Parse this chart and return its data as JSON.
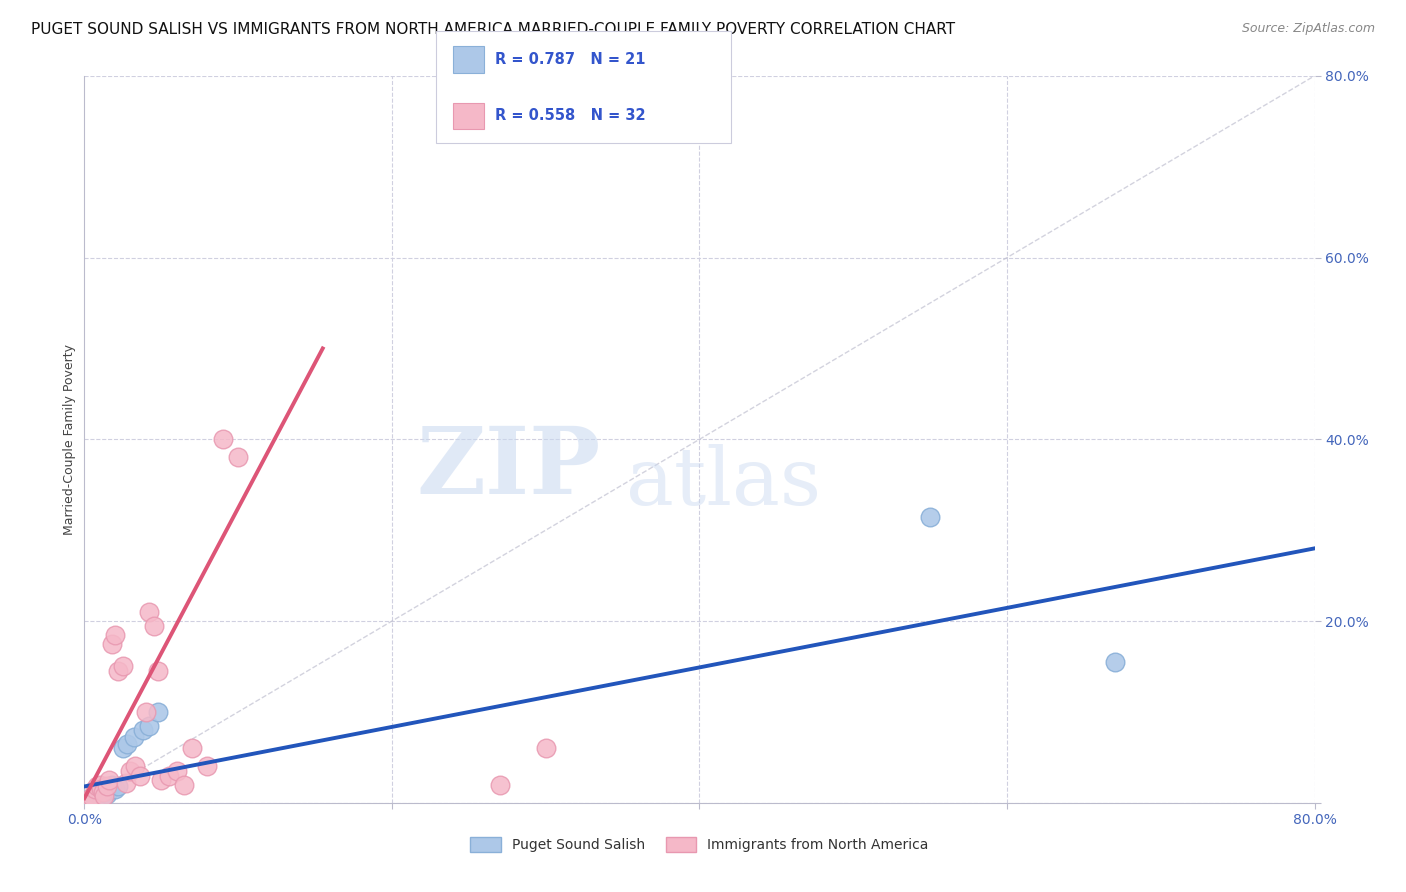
{
  "title": "PUGET SOUND SALISH VS IMMIGRANTS FROM NORTH AMERICA MARRIED-COUPLE FAMILY POVERTY CORRELATION CHART",
  "source": "Source: ZipAtlas.com",
  "ylabel": "Married-Couple Family Poverty",
  "xlim": [
    0,
    0.8
  ],
  "ylim": [
    0,
    0.8
  ],
  "blue_R": 0.787,
  "blue_N": 21,
  "pink_R": 0.558,
  "pink_N": 32,
  "blue_color": "#adc8e8",
  "pink_color": "#f5b8c8",
  "blue_edge_color": "#8ab0d8",
  "pink_edge_color": "#e898b0",
  "blue_line_color": "#2255bb",
  "pink_line_color": "#dd5577",
  "diagonal_color": "#c0c0d0",
  "grid_color": "#d0d0e0",
  "legend_label_blue": "Puget Sound Salish",
  "legend_label_pink": "Immigrants from North America",
  "blue_scatter_x": [
    0.003,
    0.005,
    0.006,
    0.008,
    0.01,
    0.011,
    0.012,
    0.013,
    0.015,
    0.016,
    0.018,
    0.02,
    0.022,
    0.025,
    0.028,
    0.032,
    0.038,
    0.042,
    0.048,
    0.55,
    0.67
  ],
  "blue_scatter_y": [
    0.004,
    0.006,
    0.008,
    0.01,
    0.01,
    0.006,
    0.008,
    0.012,
    0.01,
    0.014,
    0.02,
    0.015,
    0.018,
    0.06,
    0.065,
    0.072,
    0.08,
    0.085,
    0.1,
    0.315,
    0.155
  ],
  "pink_scatter_x": [
    0.003,
    0.005,
    0.007,
    0.008,
    0.01,
    0.011,
    0.012,
    0.013,
    0.015,
    0.016,
    0.018,
    0.02,
    0.022,
    0.025,
    0.027,
    0.03,
    0.033,
    0.036,
    0.04,
    0.042,
    0.045,
    0.048,
    0.05,
    0.055,
    0.06,
    0.065,
    0.07,
    0.08,
    0.09,
    0.1,
    0.27,
    0.3
  ],
  "pink_scatter_y": [
    0.004,
    0.006,
    0.015,
    0.018,
    0.02,
    0.015,
    0.012,
    0.008,
    0.018,
    0.025,
    0.175,
    0.185,
    0.145,
    0.15,
    0.022,
    0.035,
    0.04,
    0.03,
    0.1,
    0.21,
    0.195,
    0.145,
    0.025,
    0.03,
    0.035,
    0.02,
    0.06,
    0.04,
    0.4,
    0.38,
    0.02,
    0.06
  ],
  "pink_line_x0": 0.0,
  "pink_line_y0": 0.005,
  "pink_line_x1": 0.155,
  "pink_line_y1": 0.5,
  "blue_line_x0": 0.0,
  "blue_line_y0": 0.018,
  "blue_line_x1": 0.8,
  "blue_line_y1": 0.28,
  "watermark_zip": "ZIP",
  "watermark_atlas": "atlas",
  "title_fontsize": 11,
  "label_fontsize": 9,
  "tick_fontsize": 10,
  "source_fontsize": 9
}
